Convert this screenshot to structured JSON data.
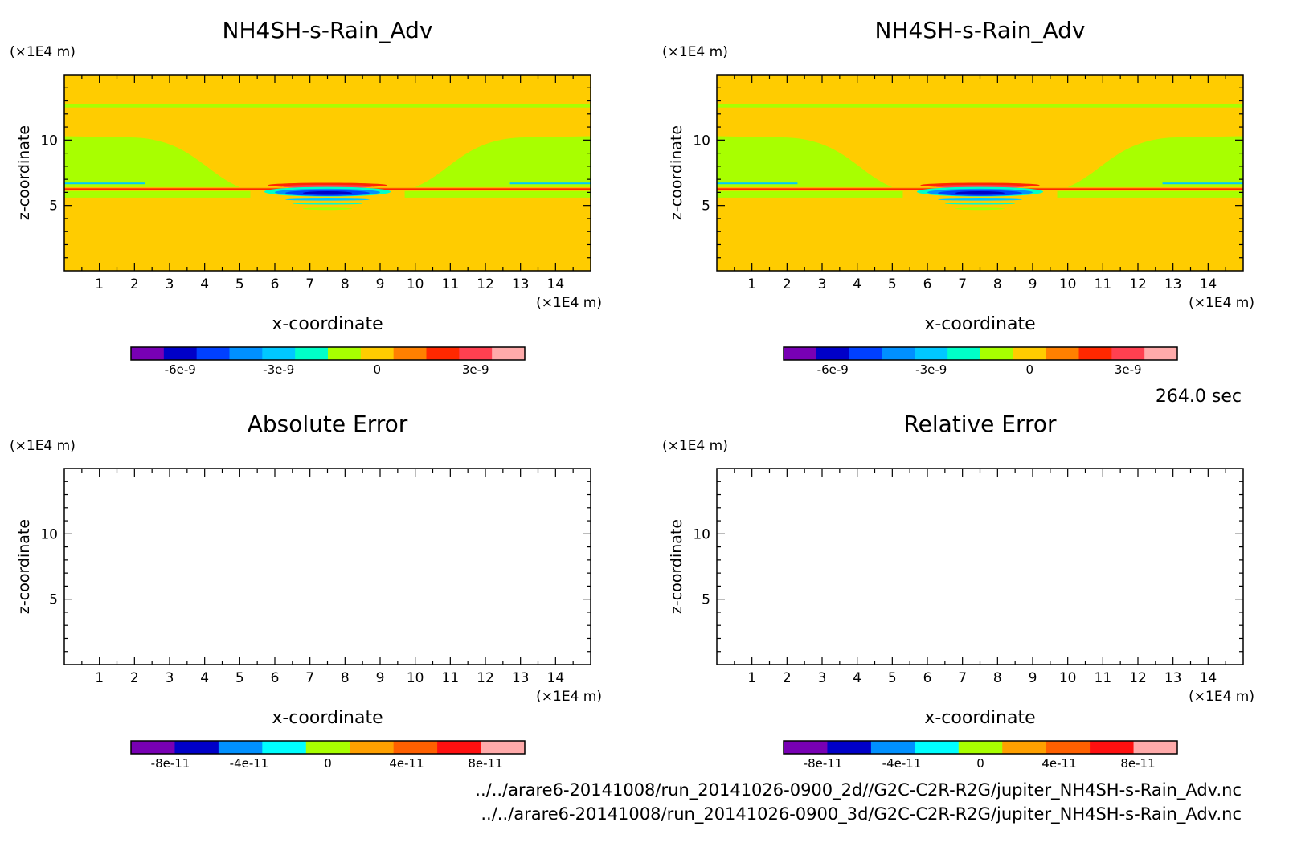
{
  "time_label": "264.0 sec",
  "footer": {
    "file1": "../../arare6-20141008/run_20141026-0900_2d//G2C-C2R-R2G/jupiter_NH4SH-s-Rain_Adv.nc",
    "file2": "../../arare6-20141008/run_20141026-0900_3d/G2C-C2R-R2G/jupiter_NH4SH-s-Rain_Adv.nc"
  },
  "chart_data": [
    {
      "type": "heatmap",
      "title": "NH4SH-s-Rain_Adv",
      "xlabel": "x-coordinate",
      "ylabel": "z-coordinate",
      "x_unit": "(×1E4 m)",
      "y_unit": "(×1E4 m)",
      "xlim": [
        0,
        15
      ],
      "ylim": [
        0,
        15
      ],
      "xticks": [
        1,
        2,
        3,
        4,
        5,
        6,
        7,
        8,
        9,
        10,
        11,
        12,
        13,
        14
      ],
      "yticks": [
        5,
        10
      ],
      "background_color": "#ffcc00",
      "features": [
        {
          "value": "0",
          "color": "#a8ff00",
          "description": "upper band at z≈12.5"
        },
        {
          "value": "0",
          "color": "#a8ff00",
          "description": "lobes near x 0-5 and 10-15, z 6-10"
        },
        {
          "value": "-6e-9",
          "color": "#0000c8",
          "description": "negative core near x 7-9, z≈6"
        },
        {
          "value": "3e-9",
          "color": "#ff2800",
          "description": "positive band at z≈6.3"
        }
      ],
      "colorbar": {
        "colors": [
          "#7800b4",
          "#0000c8",
          "#0040ff",
          "#0090ff",
          "#00c8ff",
          "#00ffc8",
          "#a8ff00",
          "#ffcc00",
          "#ff8000",
          "#ff2800",
          "#ff4050",
          "#ffaaaa"
        ],
        "tick_labels": [
          "-6e-9",
          "-3e-9",
          "0",
          "3e-9"
        ],
        "tick_values": [
          -6e-09,
          -3e-09,
          0,
          3e-09
        ],
        "range": [
          -7.5e-09,
          4.5e-09
        ]
      }
    },
    {
      "type": "heatmap",
      "title": "NH4SH-s-Rain_Adv",
      "xlabel": "x-coordinate",
      "ylabel": "z-coordinate",
      "x_unit": "(×1E4 m)",
      "y_unit": "(×1E4 m)",
      "xlim": [
        0,
        15
      ],
      "ylim": [
        0,
        15
      ],
      "xticks": [
        1,
        2,
        3,
        4,
        5,
        6,
        7,
        8,
        9,
        10,
        11,
        12,
        13,
        14
      ],
      "yticks": [
        5,
        10
      ],
      "background_color": "#ffcc00",
      "features": [
        {
          "value": "0",
          "color": "#a8ff00",
          "description": "upper band at z≈12.5"
        },
        {
          "value": "0",
          "color": "#a8ff00",
          "description": "lobes near x 0-5 and 10-15, z 6-10"
        },
        {
          "value": "-6e-9",
          "color": "#0000c8",
          "description": "negative core near x 7-9, z≈6"
        },
        {
          "value": "3e-9",
          "color": "#ff2800",
          "description": "positive band at z≈6.3"
        }
      ],
      "colorbar": {
        "colors": [
          "#7800b4",
          "#0000c8",
          "#0040ff",
          "#0090ff",
          "#00c8ff",
          "#00ffc8",
          "#a8ff00",
          "#ffcc00",
          "#ff8000",
          "#ff2800",
          "#ff4050",
          "#ffaaaa"
        ],
        "tick_labels": [
          "-6e-9",
          "-3e-9",
          "0",
          "3e-9"
        ],
        "tick_values": [
          -6e-09,
          -3e-09,
          0,
          3e-09
        ],
        "range": [
          -7.5e-09,
          4.5e-09
        ]
      }
    },
    {
      "type": "heatmap",
      "title": "Absolute Error",
      "xlabel": "x-coordinate",
      "ylabel": "z-coordinate",
      "x_unit": "(×1E4 m)",
      "y_unit": "(×1E4 m)",
      "xlim": [
        0,
        15
      ],
      "ylim": [
        0,
        15
      ],
      "xticks": [
        1,
        2,
        3,
        4,
        5,
        6,
        7,
        8,
        9,
        10,
        11,
        12,
        13,
        14
      ],
      "yticks": [
        5,
        10
      ],
      "background_color": "#ffffff",
      "features": [],
      "colorbar": {
        "colors": [
          "#7800b4",
          "#0000c8",
          "#0090ff",
          "#00ffff",
          "#a8ff00",
          "#ffa000",
          "#ff6000",
          "#ff1010",
          "#ffaaaa"
        ],
        "tick_labels": [
          "-8e-11",
          "-4e-11",
          "0",
          "4e-11",
          "8e-11"
        ],
        "tick_values": [
          -8e-11,
          -4e-11,
          0,
          4e-11,
          8e-11
        ],
        "range": [
          -1e-10,
          1e-10
        ]
      }
    },
    {
      "type": "heatmap",
      "title": "Relative Error",
      "xlabel": "x-coordinate",
      "ylabel": "z-coordinate",
      "x_unit": "(×1E4 m)",
      "y_unit": "(×1E4 m)",
      "xlim": [
        0,
        15
      ],
      "ylim": [
        0,
        15
      ],
      "xticks": [
        1,
        2,
        3,
        4,
        5,
        6,
        7,
        8,
        9,
        10,
        11,
        12,
        13,
        14
      ],
      "yticks": [
        5,
        10
      ],
      "background_color": "#ffffff",
      "features": [],
      "colorbar": {
        "colors": [
          "#7800b4",
          "#0000c8",
          "#0090ff",
          "#00ffff",
          "#a8ff00",
          "#ffa000",
          "#ff6000",
          "#ff1010",
          "#ffaaaa"
        ],
        "tick_labels": [
          "-8e-11",
          "-4e-11",
          "0",
          "4e-11",
          "8e-11"
        ],
        "tick_values": [
          -8e-11,
          -4e-11,
          0,
          4e-11,
          8e-11
        ],
        "range": [
          -1e-10,
          1e-10
        ]
      }
    }
  ]
}
